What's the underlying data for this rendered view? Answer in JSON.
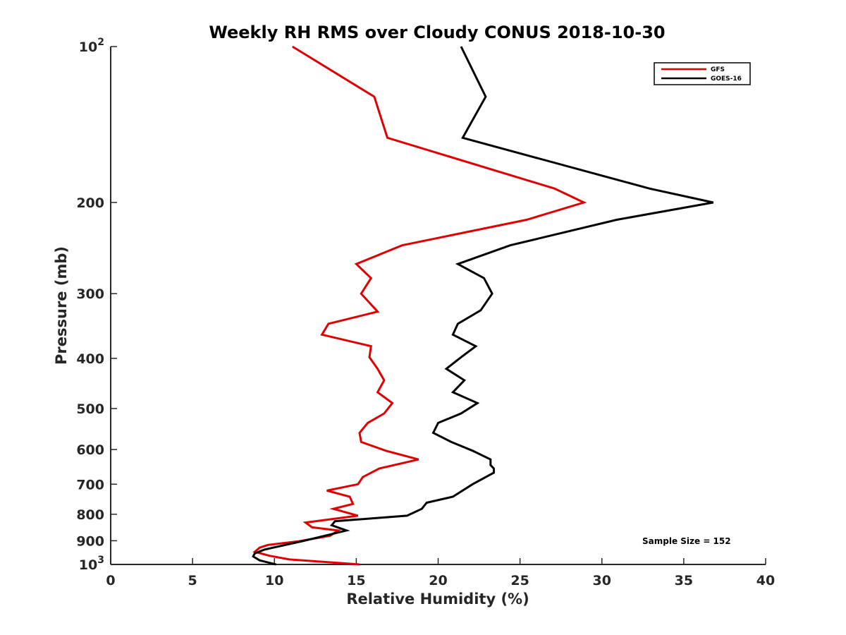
{
  "chart_data": {
    "type": "line",
    "title": "Weekly RH RMS over Cloudy CONUS 2018-10-30",
    "xlabel": "Relative Humidity (%)",
    "ylabel": "Pressure (mb)",
    "xlim": [
      0,
      40
    ],
    "ylim": [
      100,
      1000
    ],
    "y_scale": "log",
    "y_reversed": true,
    "grid": false,
    "legend_position": "top-right",
    "x_ticks": [
      0,
      5,
      10,
      15,
      20,
      25,
      30,
      35,
      40
    ],
    "y_ticks": [
      {
        "value": 100,
        "base": "10",
        "exp": "2"
      },
      {
        "value": 200,
        "label": "200"
      },
      {
        "value": 300,
        "label": "300"
      },
      {
        "value": 400,
        "label": "400"
      },
      {
        "value": 500,
        "label": "500"
      },
      {
        "value": 600,
        "label": "600"
      },
      {
        "value": 700,
        "label": "700"
      },
      {
        "value": 800,
        "label": "800"
      },
      {
        "value": 900,
        "label": "900"
      },
      {
        "value": 1000,
        "base": "10",
        "exp": "3"
      }
    ],
    "annotation": "Sample Size = 152",
    "series": [
      {
        "name": "GFS",
        "color": "#e00000",
        "points": [
          [
            11.1,
            100
          ],
          [
            16.1,
            125
          ],
          [
            16.9,
            150
          ],
          [
            27.1,
            188
          ],
          [
            28.9,
            200
          ],
          [
            25.4,
            216
          ],
          [
            17.8,
            242
          ],
          [
            15.0,
            263
          ],
          [
            15.9,
            280
          ],
          [
            15.3,
            300
          ],
          [
            16.3,
            325
          ],
          [
            13.3,
            343
          ],
          [
            12.9,
            360
          ],
          [
            15.9,
            379
          ],
          [
            15.8,
            398
          ],
          [
            16.3,
            419
          ],
          [
            16.7,
            441
          ],
          [
            16.3,
            465
          ],
          [
            17.2,
            488
          ],
          [
            16.7,
            511
          ],
          [
            15.7,
            533
          ],
          [
            15.2,
            557
          ],
          [
            15.3,
            580
          ],
          [
            16.8,
            603
          ],
          [
            18.8,
            627
          ],
          [
            16.4,
            653
          ],
          [
            15.4,
            678
          ],
          [
            15.1,
            700
          ],
          [
            13.2,
            720
          ],
          [
            14.6,
            740
          ],
          [
            14.8,
            764
          ],
          [
            13.6,
            781
          ],
          [
            15.1,
            805
          ],
          [
            11.9,
            830
          ],
          [
            12.3,
            848
          ],
          [
            13.9,
            860
          ],
          [
            13.4,
            880
          ],
          [
            11.5,
            902
          ],
          [
            9.6,
            917
          ],
          [
            9.1,
            928
          ],
          [
            8.8,
            945
          ],
          [
            9.7,
            962
          ],
          [
            10.9,
            978
          ],
          [
            15.2,
            1000
          ]
        ]
      },
      {
        "name": "GOES-16",
        "color": "#000000",
        "points": [
          [
            21.4,
            100
          ],
          [
            22.9,
            125
          ],
          [
            21.5,
            150
          ],
          [
            32.9,
            188
          ],
          [
            36.8,
            200
          ],
          [
            30.9,
            216
          ],
          [
            24.4,
            242
          ],
          [
            21.2,
            263
          ],
          [
            22.8,
            280
          ],
          [
            23.3,
            300
          ],
          [
            22.6,
            323
          ],
          [
            21.2,
            343
          ],
          [
            20.9,
            360
          ],
          [
            22.3,
            379
          ],
          [
            21.4,
            398
          ],
          [
            20.5,
            419
          ],
          [
            21.6,
            441
          ],
          [
            20.9,
            465
          ],
          [
            22.4,
            488
          ],
          [
            21.4,
            511
          ],
          [
            20.0,
            533
          ],
          [
            19.7,
            557
          ],
          [
            20.8,
            580
          ],
          [
            22.1,
            603
          ],
          [
            23.2,
            627
          ],
          [
            23.2,
            643
          ],
          [
            23.4,
            653
          ],
          [
            23.4,
            665
          ],
          [
            22.1,
            700
          ],
          [
            20.9,
            740
          ],
          [
            19.3,
            760
          ],
          [
            19.0,
            781
          ],
          [
            18.1,
            805
          ],
          [
            13.7,
            825
          ],
          [
            13.5,
            840
          ],
          [
            14.4,
            860
          ],
          [
            11.7,
            902
          ],
          [
            9.4,
            936
          ],
          [
            8.8,
            952
          ],
          [
            8.7,
            965
          ],
          [
            9.1,
            982
          ],
          [
            10.1,
            1000
          ]
        ]
      }
    ]
  }
}
